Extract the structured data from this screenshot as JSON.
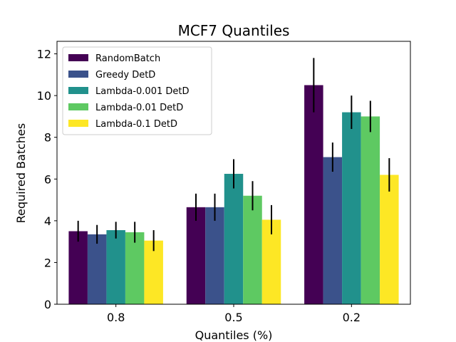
{
  "chart_data": {
    "type": "bar",
    "title": "MCF7 Quantiles",
    "xlabel": "Quantiles (%)",
    "ylabel": "Required Batches",
    "categories": [
      "0.8",
      "0.5",
      "0.2"
    ],
    "ylim": [
      0,
      12.6
    ],
    "yticks": [
      0,
      2,
      4,
      6,
      8,
      10,
      12
    ],
    "grid": false,
    "legend_position": "top-left",
    "series": [
      {
        "name": "RandomBatch",
        "color": "#440154",
        "values": [
          3.5,
          4.65,
          10.5
        ],
        "errors": [
          0.5,
          0.65,
          1.3
        ]
      },
      {
        "name": "Greedy DetD",
        "color": "#3b528b",
        "values": [
          3.35,
          4.65,
          7.05
        ],
        "errors": [
          0.45,
          0.65,
          0.7
        ]
      },
      {
        "name": "Lambda-0.001 DetD",
        "color": "#21918c",
        "values": [
          3.55,
          6.25,
          9.2
        ],
        "errors": [
          0.4,
          0.7,
          0.8
        ]
      },
      {
        "name": "Lambda-0.01 DetD",
        "color": "#5ec962",
        "values": [
          3.45,
          5.2,
          9.0
        ],
        "errors": [
          0.5,
          0.7,
          0.75
        ]
      },
      {
        "name": "Lambda-0.1 DetD",
        "color": "#fde725",
        "values": [
          3.05,
          4.05,
          6.2
        ],
        "errors": [
          0.5,
          0.7,
          0.8
        ]
      }
    ]
  }
}
